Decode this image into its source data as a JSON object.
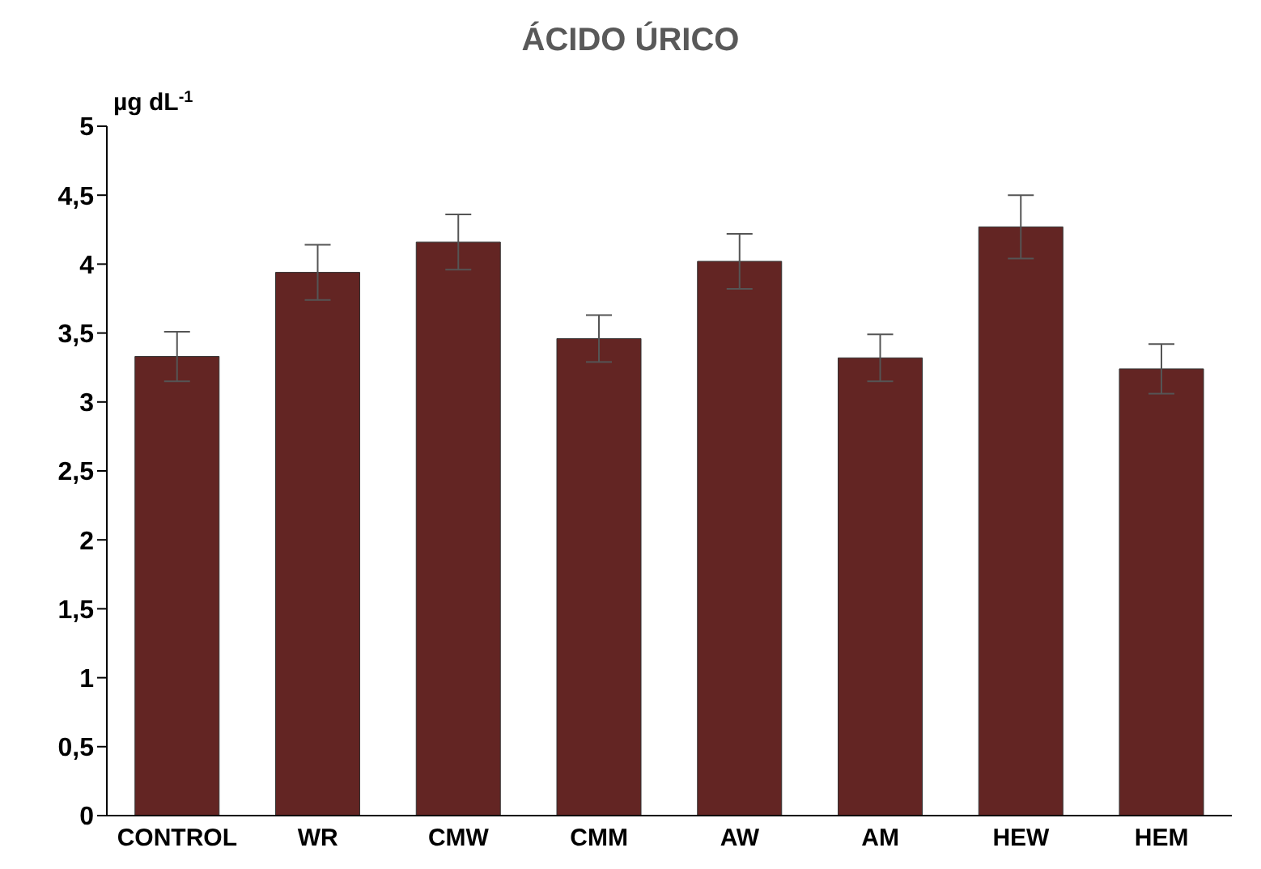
{
  "chart_data": {
    "type": "bar",
    "title": "ÁCIDO ÚRICO",
    "ylabel": "µg dL$^{-1}$",
    "categories": [
      "CONTROL",
      "WR",
      "CMW",
      "CMM",
      "AW",
      "AM",
      "HEW",
      "HEM"
    ],
    "values": [
      3.33,
      3.94,
      4.16,
      3.46,
      4.02,
      3.32,
      4.27,
      3.24
    ],
    "errors": [
      0.18,
      0.2,
      0.2,
      0.17,
      0.2,
      0.17,
      0.23,
      0.18
    ],
    "color": "#632523",
    "ylim": [
      0,
      5
    ],
    "yticks": [
      0,
      {
        "value": 0.5,
        "label": "0,5"
      },
      1,
      {
        "value": 1.5,
        "label": "1,5"
      },
      2,
      {
        "value": 2.5,
        "label": "2,5"
      },
      3,
      {
        "value": 3.5,
        "label": "3,5"
      },
      4,
      {
        "value": 4.5,
        "label": "4,5"
      },
      5
    ],
    "grid": false,
    "legend": false
  }
}
